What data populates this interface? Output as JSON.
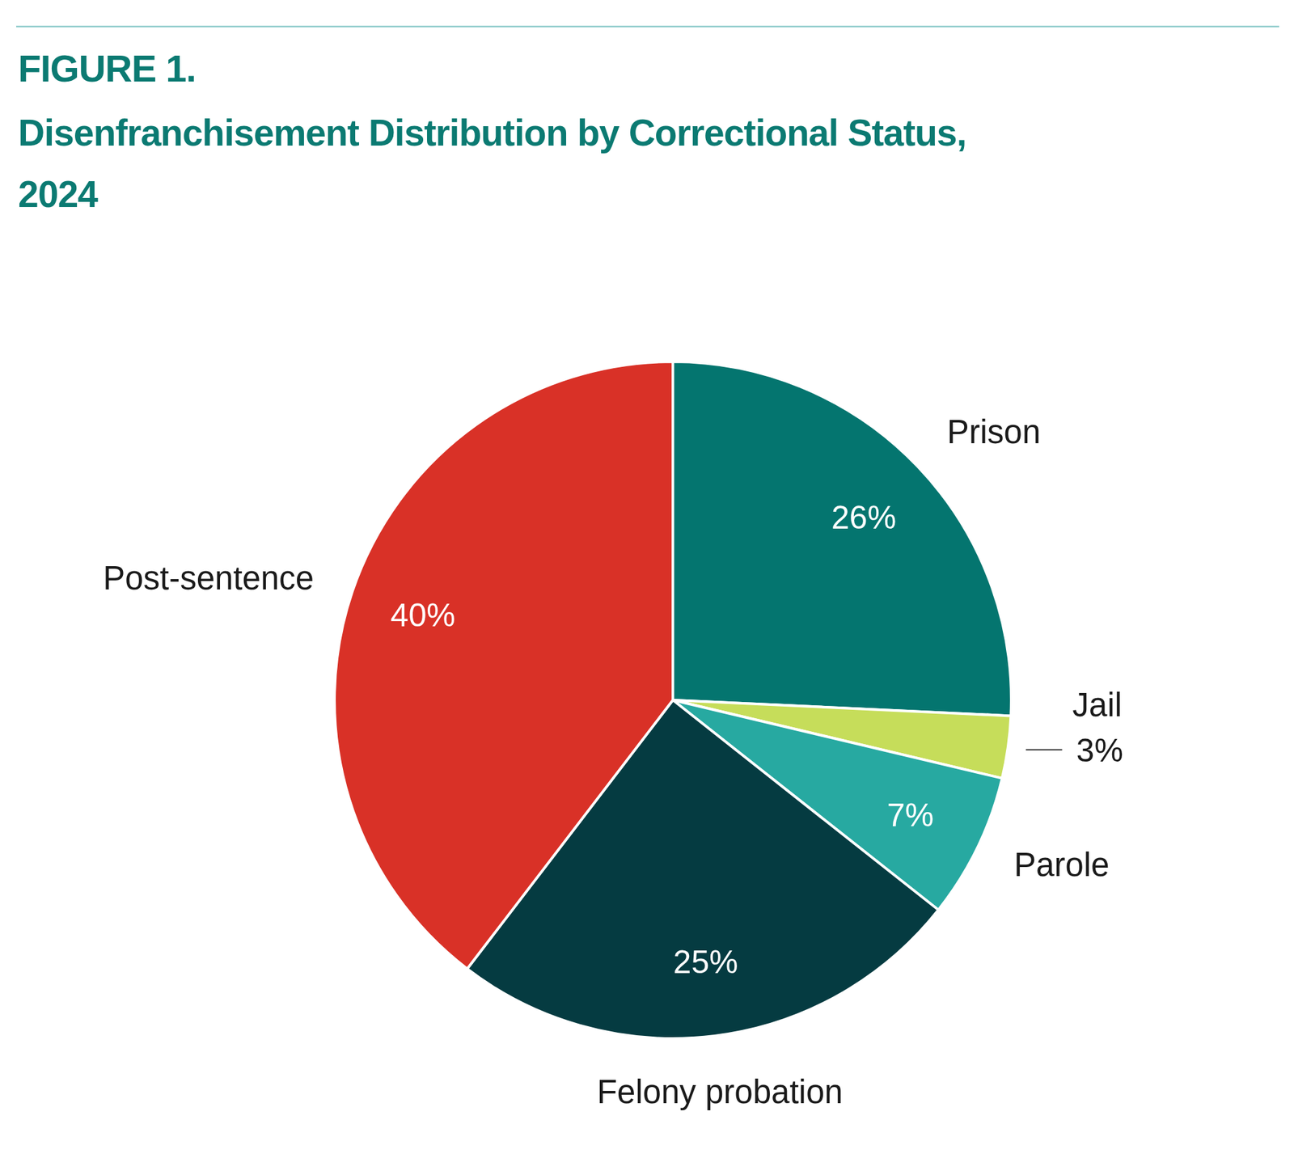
{
  "chart_data": {
    "type": "pie",
    "title": "Disenfranchisement Distribution by Correctional Status, 2024",
    "annotations": [
      "FIGURE 1."
    ],
    "categories": [
      "Prison",
      "Jail",
      "Parole",
      "Felony probation",
      "Post-sentence"
    ],
    "values": [
      26,
      3,
      7,
      25,
      40
    ],
    "value_labels": [
      "26%",
      "3%",
      "7%",
      "25%",
      "40%"
    ],
    "colors": [
      "#04756f",
      "#c6dd5a",
      "#27a9a1",
      "#053b41",
      "#d93127"
    ],
    "data_labels": true
  }
}
